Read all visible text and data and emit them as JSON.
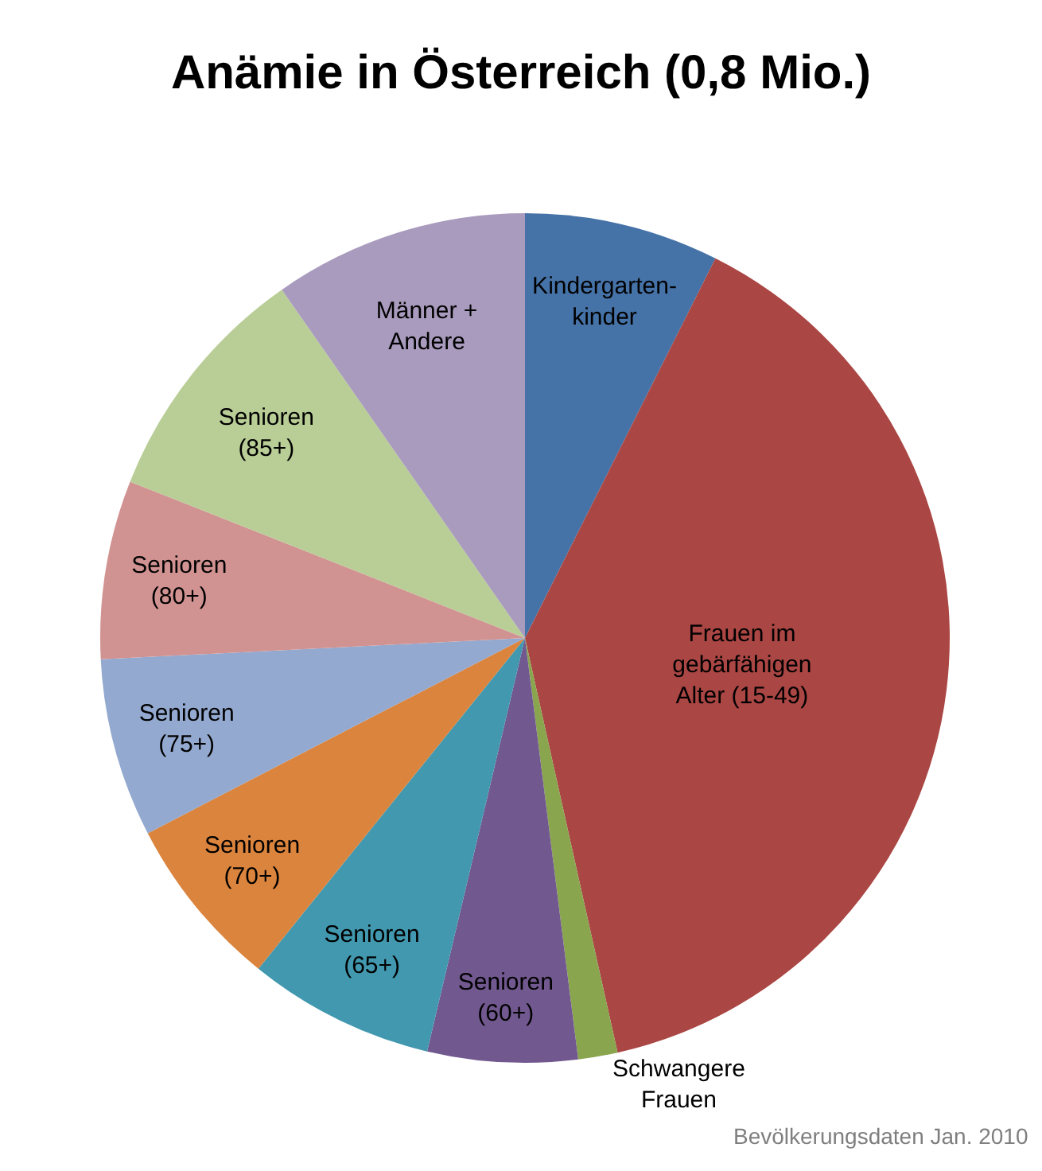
{
  "chart_data": {
    "type": "pie",
    "title": "Anämie in Österreich (0,8 Mio.)",
    "categories": [
      "Kindergarten-\nkinder",
      "Frauen im\ngebärfähigen\nAlter (15-49)",
      "Schwangere\nFrauen",
      "Senioren\n(60+)",
      "Senioren\n(65+)",
      "Senioren\n(70+)",
      "Senioren\n(75+)",
      "Senioren\n(80+)",
      "Senioren\n(85+)",
      "Männer +\nAndere"
    ],
    "values": [
      7.4,
      39.1,
      1.5,
      5.7,
      7.1,
      6.6,
      6.8,
      6.8,
      9.3,
      9.7
    ],
    "colors": [
      "#4572a7",
      "#aa4643",
      "#89a54e",
      "#71588f",
      "#4198af",
      "#db843d",
      "#93a9cf",
      "#d19392",
      "#b9cd96",
      "#a99bbd"
    ],
    "annotations": [
      "Bevölkerungsdaten Jan. 2010"
    ],
    "legend": false
  }
}
